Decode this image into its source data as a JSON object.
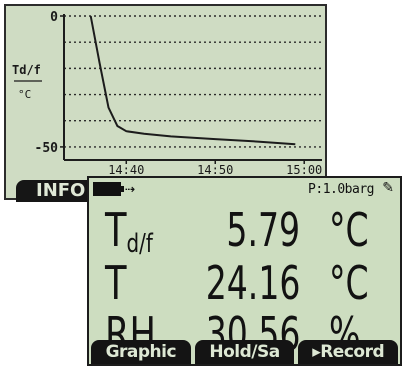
{
  "back_screen": {
    "ylabel_top": "Td/f",
    "ylabel_bottom": "°C",
    "y_ticks": [
      "0",
      "-50"
    ],
    "x_ticks": [
      "14:40",
      "14:50",
      "15:00"
    ],
    "info_tab_label": "INFO"
  },
  "chart_data": {
    "type": "line",
    "title": "",
    "xlabel": "",
    "ylabel": "Td/f °C",
    "x_ticks": [
      "14:40",
      "14:50",
      "15:00"
    ],
    "ylim": [
      -55,
      0
    ],
    "grid": true,
    "series": [
      {
        "x": [
          "14:36",
          "14:37",
          "14:38",
          "14:39",
          "14:40",
          "14:42",
          "14:45",
          "14:50",
          "14:55",
          "14:59"
        ],
        "values": [
          0,
          -18,
          -35,
          -42,
          -44,
          -45,
          -46,
          -47,
          -48,
          -49
        ]
      }
    ]
  },
  "front_screen": {
    "status": {
      "battery_icon": "battery-icon",
      "connection_icon": "connection-icon",
      "connection_glyph": "⇢",
      "pressure": "P:1.0barg",
      "pen_glyph": "✎"
    },
    "readings": [
      {
        "label": "T",
        "label_sub": "d/f",
        "value": "5.79",
        "unit": "°C"
      },
      {
        "label": "T",
        "label_sub": "",
        "value": "24.16",
        "unit": "°C"
      },
      {
        "label": "RH",
        "label_sub": "",
        "value": "30.56",
        "unit": "%"
      }
    ],
    "softkeys": [
      "Graphic",
      "Hold/Sa",
      "▸Record"
    ]
  }
}
